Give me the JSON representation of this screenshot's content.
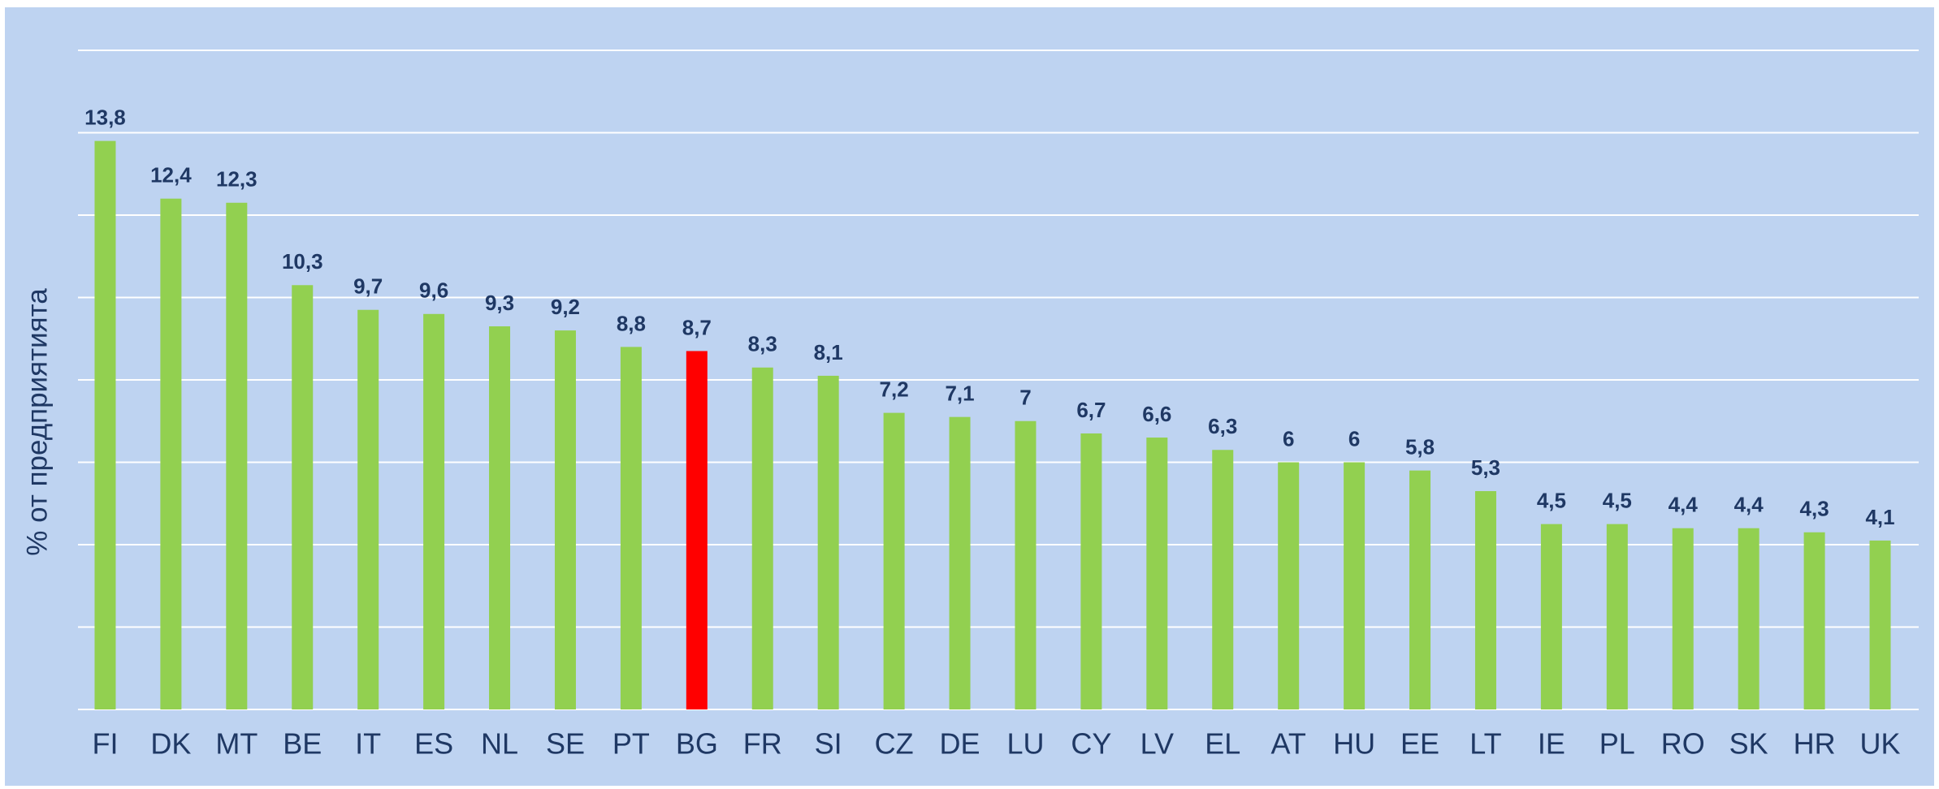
{
  "chart_data": {
    "type": "bar",
    "y_label": "% от предприятията",
    "categories": [
      "FI",
      "DK",
      "MT",
      "BE",
      "IT",
      "ES",
      "NL",
      "SE",
      "PT",
      "BG",
      "FR",
      "SI",
      "CZ",
      "DE",
      "LU",
      "CY",
      "LV",
      "EL",
      "AT",
      "HU",
      "EE",
      "LT",
      "IE",
      "PL",
      "RO",
      "SK",
      "HR",
      "UK"
    ],
    "values": [
      13.8,
      12.4,
      12.3,
      10.3,
      9.7,
      9.6,
      9.3,
      9.2,
      8.8,
      8.7,
      8.3,
      8.1,
      7.2,
      7.1,
      7,
      6.7,
      6.6,
      6.3,
      6,
      6,
      5.8,
      5.3,
      4.5,
      4.5,
      4.4,
      4.4,
      4.3,
      4.1
    ],
    "value_labels": [
      "13,8",
      "12,4",
      "12,3",
      "10,3",
      "9,7",
      "9,6",
      "9,3",
      "9,2",
      "8,8",
      "8,7",
      "8,3",
      "8,1",
      "7,2",
      "7,1",
      "7",
      "6,7",
      "6,6",
      "6,3",
      "6",
      "6",
      "5,8",
      "5,3",
      "4,5",
      "4,5",
      "4,4",
      "4,4",
      "4,3",
      "4,1"
    ],
    "colors": [
      "#92d050",
      "#92d050",
      "#92d050",
      "#92d050",
      "#92d050",
      "#92d050",
      "#92d050",
      "#92d050",
      "#92d050",
      "#ff0000",
      "#92d050",
      "#92d050",
      "#92d050",
      "#92d050",
      "#92d050",
      "#92d050",
      "#92d050",
      "#92d050",
      "#92d050",
      "#92d050",
      "#92d050",
      "#92d050",
      "#92d050",
      "#92d050",
      "#92d050",
      "#92d050",
      "#92d050",
      "#92d050"
    ],
    "ylim": [
      0,
      16
    ],
    "yticks": [
      0,
      2,
      4,
      6,
      8,
      10,
      12,
      14,
      16
    ],
    "grid": true
  }
}
